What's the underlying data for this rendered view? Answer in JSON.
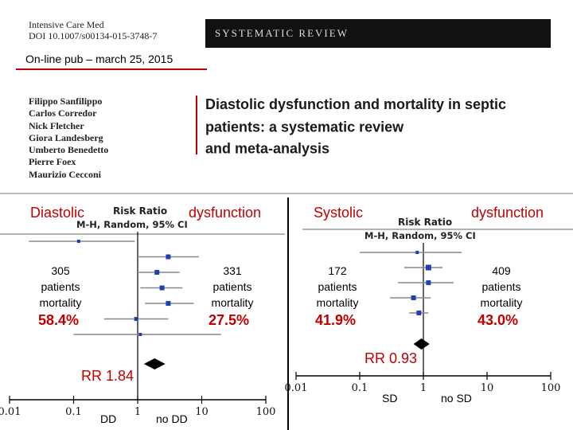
{
  "header": {
    "journal_line1": "Intensive Care Med",
    "journal_line2": "DOI 10.1007/s00134-015-3748-7",
    "banner": "SYSTEMATIC REVIEW",
    "pub_date": "On-line pub – march 25, 2015"
  },
  "authors": [
    "Filippo Sanfilippo",
    "Carlos Corredor",
    "Nick Fletcher",
    "Giora Landesberg",
    "Umberto Benedetto",
    "Pierre Foex",
    "Maurizio Cecconi"
  ],
  "paper_title": [
    "Diastolic dysfunction and mortality in septic",
    "patients: a systematic review",
    "and meta-analysis"
  ],
  "left_panel": {
    "heading_left": "Diastolic",
    "heading_right": "dysfunction",
    "plot_title": "Risk Ratio",
    "plot_subtitle": "M-H, Random, 95% CI",
    "group_a": {
      "count": "305",
      "label1": "patients",
      "label2": "mortality",
      "pct": "58.4%"
    },
    "group_b": {
      "count": "331",
      "label1": "patients",
      "label2": "mortality",
      "pct": "27.5%"
    },
    "rr": "RR 1.84",
    "axis_left": "DD",
    "axis_right": "no DD"
  },
  "right_panel": {
    "heading_left": "Systolic",
    "heading_right": "dysfunction",
    "plot_title": "Risk Ratio",
    "plot_subtitle": "M-H, Random, 95% CI",
    "group_a": {
      "count": "172",
      "label1": "patients",
      "label2": "mortality",
      "pct": "41.9%"
    },
    "group_b": {
      "count": "409",
      "label1": "patients",
      "label2": "mortality",
      "pct": "43.0%"
    },
    "rr": "RR 0.93",
    "axis_left": "SD",
    "axis_right": "no SD"
  },
  "chart_data": [
    {
      "type": "forest",
      "title": "Diastolic dysfunction",
      "subtitle": "M-H, Random, 95% CI",
      "xscale": "log",
      "xlim": [
        0.01,
        100
      ],
      "ticks": [
        "0.01",
        "0.1",
        "1",
        "10",
        "100"
      ],
      "studies": [
        {
          "rr": 0.12,
          "lo": 0.02,
          "hi": 0.9
        },
        {
          "rr": 3.0,
          "lo": 1.0,
          "hi": 9.0
        },
        {
          "rr": 2.0,
          "lo": 1.0,
          "hi": 4.5
        },
        {
          "rr": 2.4,
          "lo": 1.1,
          "hi": 5.0
        },
        {
          "rr": 3.0,
          "lo": 1.3,
          "hi": 7.5
        },
        {
          "rr": 0.95,
          "lo": 0.3,
          "hi": 3.0
        },
        {
          "rr": 1.1,
          "lo": 0.1,
          "hi": 20
        }
      ],
      "pooled": {
        "rr": 1.84,
        "lo": 1.25,
        "hi": 2.7
      }
    },
    {
      "type": "forest",
      "title": "Systolic dysfunction",
      "subtitle": "M-H, Random, 95% CI",
      "xscale": "log",
      "xlim": [
        0.01,
        100
      ],
      "ticks": [
        "0.01",
        "0.1",
        "1",
        "10",
        "100"
      ],
      "studies": [
        {
          "rr": 0.8,
          "lo": 0.1,
          "hi": 4.0
        },
        {
          "rr": 1.2,
          "lo": 0.5,
          "hi": 2.0
        },
        {
          "rr": 1.2,
          "lo": 0.4,
          "hi": 3.0
        },
        {
          "rr": 0.7,
          "lo": 0.3,
          "hi": 1.3
        },
        {
          "rr": 0.85,
          "lo": 0.6,
          "hi": 1.2
        }
      ],
      "pooled": {
        "rr": 0.93,
        "lo": 0.7,
        "hi": 1.25
      }
    }
  ],
  "colors": {
    "accent": "#c00000",
    "marker": "#1f3fb5"
  }
}
